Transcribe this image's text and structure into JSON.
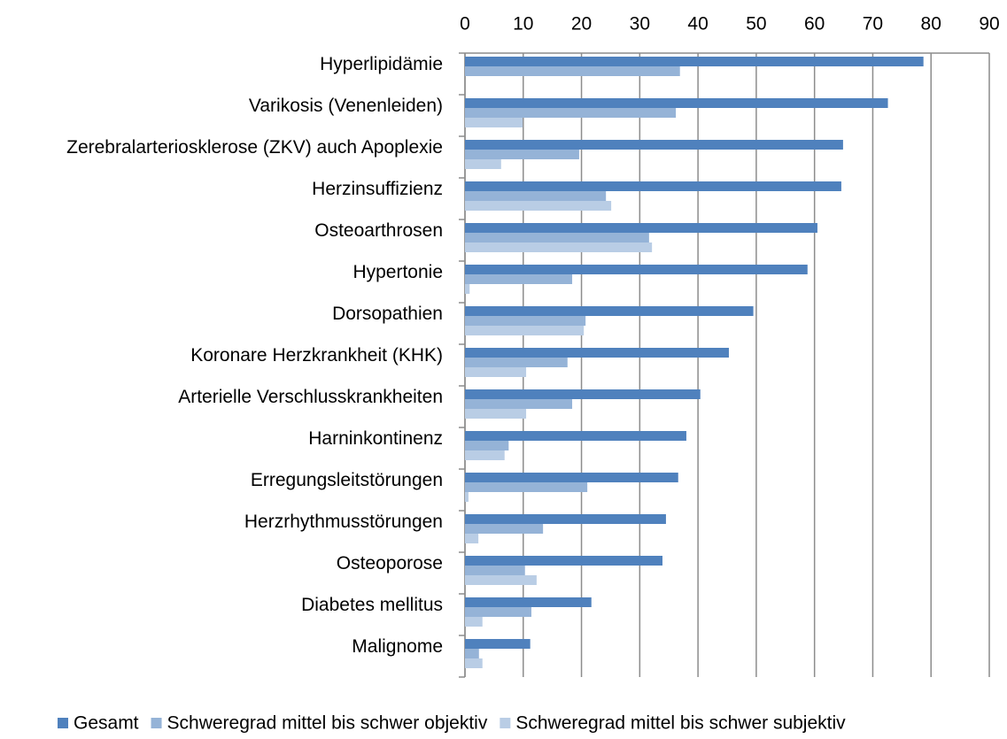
{
  "chart_data": {
    "type": "barh",
    "categories": [
      "Hyperlipidämie",
      "Varikosis (Venenleiden)",
      "Zerebralarteriosklerose (ZKV) auch Apoplexie",
      "Herzinsuffizienz",
      "Osteoarthrosen",
      "Hypertonie",
      "Dorsopathien",
      "Koronare Herzkrankheit (KHK)",
      "Arterielle Verschlusskrankheiten",
      "Harninkontinenz",
      "Erregungsleitstörungen",
      "Herzrhythmusstörungen",
      "Osteoporose",
      "Diabetes mellitus",
      "Malignome"
    ],
    "series": [
      {
        "name": "Gesamt",
        "color": "#4f81bd",
        "values": [
          78.7,
          72.6,
          64.9,
          64.6,
          60.5,
          58.8,
          49.5,
          45.3,
          40.4,
          38.0,
          36.6,
          34.5,
          33.9,
          21.7,
          11.2
        ]
      },
      {
        "name": "Schweregrad mittel bis schwer objektiv",
        "color": "#95b3d7",
        "values": [
          36.9,
          36.2,
          19.6,
          24.2,
          31.6,
          18.4,
          20.7,
          17.6,
          18.4,
          7.5,
          21.0,
          13.4,
          10.3,
          11.4,
          2.4
        ]
      },
      {
        "name": "Schweregrad mittel bis schwer subjektiv",
        "color": "#b9cde5",
        "values": [
          0,
          9.9,
          6.2,
          25.1,
          32.1,
          0.8,
          20.4,
          10.5,
          10.5,
          6.8,
          0.6,
          2.3,
          12.3,
          3.0,
          3.0
        ]
      }
    ],
    "xlim": [
      0,
      90
    ],
    "xticks": [
      0,
      10,
      20,
      30,
      40,
      50,
      60,
      70,
      80,
      90
    ],
    "grid": true,
    "legend": "bottom"
  }
}
